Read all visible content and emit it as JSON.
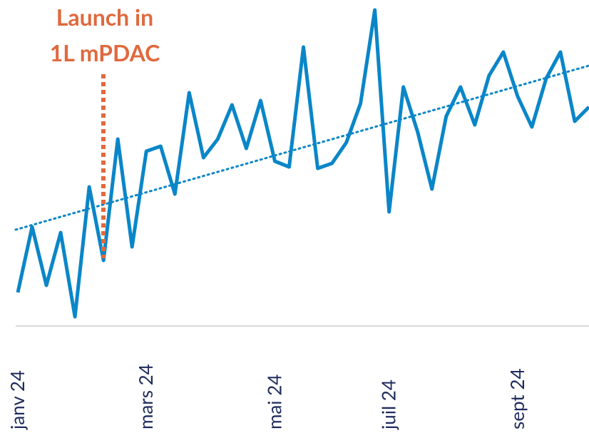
{
  "chart_data": {
    "type": "line",
    "categories": [
      "janv 24",
      null,
      null,
      null,
      null,
      null,
      null,
      null,
      null,
      "mars 24",
      null,
      null,
      null,
      null,
      null,
      null,
      null,
      null,
      "mai 24",
      null,
      null,
      null,
      null,
      null,
      null,
      null,
      "juil 24",
      null,
      null,
      null,
      null,
      null,
      null,
      null,
      null,
      "sept 24",
      null,
      null,
      null,
      null,
      null
    ],
    "series": [
      {
        "color": "#0a86c8",
        "values": [
          47,
          139,
          57,
          131,
          13,
          195,
          92,
          262,
          111,
          245,
          252,
          185,
          327,
          236,
          262,
          310,
          249,
          316,
          231,
          223,
          391,
          221,
          228,
          257,
          312,
          443,
          160,
          335,
          272,
          192,
          294,
          335,
          282,
          351,
          384,
          322,
          279,
          347,
          384,
          287,
          307
        ]
      }
    ],
    "trendline": {
      "color": "#0a86c8",
      "start": 135,
      "end": 365
    },
    "annotation": {
      "text": [
        "Launch in",
        "1L mPDAC"
      ],
      "color": "#e0693e"
    },
    "ylim": [
      0,
      457
    ]
  }
}
